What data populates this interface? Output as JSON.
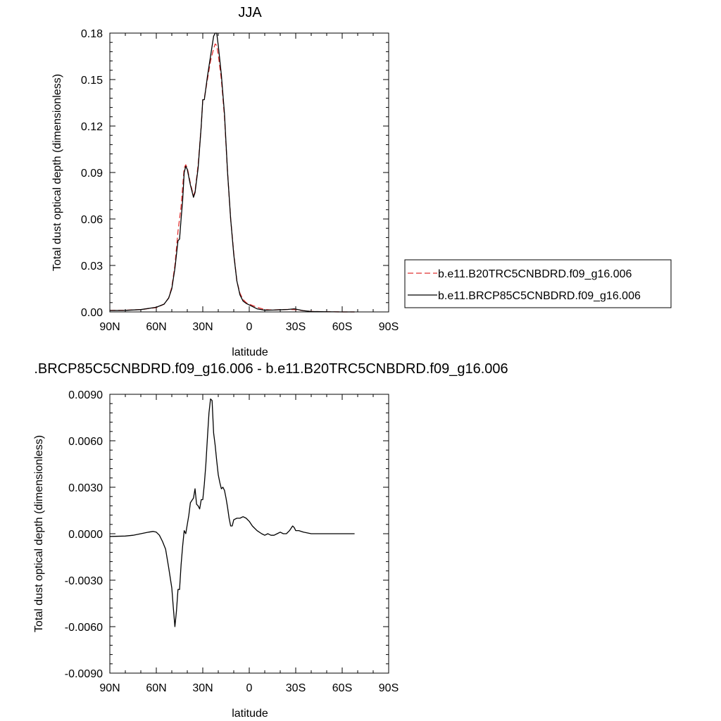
{
  "chart_data": [
    {
      "type": "line",
      "title": "JJA",
      "xlabel": "latitude",
      "ylabel": "Total dust optical depth (dimensionless)",
      "xlim": [
        90,
        -90
      ],
      "ylim": [
        0,
        0.18
      ],
      "xticks": [
        {
          "value": 90,
          "label": "90N"
        },
        {
          "value": 60,
          "label": "60N"
        },
        {
          "value": 30,
          "label": "30N"
        },
        {
          "value": 0,
          "label": "0"
        },
        {
          "value": -30,
          "label": "30S"
        },
        {
          "value": -60,
          "label": "60S"
        },
        {
          "value": -90,
          "label": "90S"
        }
      ],
      "yticks": [
        {
          "value": 0.0,
          "label": "0.00"
        },
        {
          "value": 0.03,
          "label": "0.03"
        },
        {
          "value": 0.06,
          "label": "0.06"
        },
        {
          "value": 0.09,
          "label": "0.09"
        },
        {
          "value": 0.12,
          "label": "0.12"
        },
        {
          "value": 0.15,
          "label": "0.15"
        },
        {
          "value": 0.18,
          "label": "0.18"
        }
      ],
      "legend_position": "right",
      "series": [
        {
          "name": "b.e11.B20TRC5CNBDRD.f09_g16.006",
          "color": "#e03030",
          "dash": "dashed",
          "points": [
            [
              90,
              0.001
            ],
            [
              80,
              0.0011
            ],
            [
              70,
              0.0015
            ],
            [
              60,
              0.0028
            ],
            [
              55,
              0.005
            ],
            [
              52,
              0.009
            ],
            [
              50,
              0.016
            ],
            [
              48,
              0.03
            ],
            [
              46,
              0.052
            ],
            [
              44,
              0.068
            ],
            [
              42,
              0.093
            ],
            [
              41,
              0.095
            ],
            [
              40,
              0.093
            ],
            [
              38,
              0.083
            ],
            [
              36,
              0.075
            ],
            [
              35,
              0.078
            ],
            [
              33,
              0.095
            ],
            [
              31,
              0.12
            ],
            [
              30,
              0.137
            ],
            [
              29,
              0.138
            ],
            [
              27,
              0.15
            ],
            [
              25,
              0.162
            ],
            [
              23,
              0.17
            ],
            [
              22,
              0.173
            ],
            [
              21,
              0.172
            ],
            [
              20,
              0.166
            ],
            [
              18,
              0.15
            ],
            [
              16,
              0.126
            ],
            [
              14,
              0.09
            ],
            [
              12,
              0.06
            ],
            [
              10,
              0.038
            ],
            [
              8,
              0.02
            ],
            [
              6,
              0.012
            ],
            [
              4,
              0.008
            ],
            [
              2,
              0.006
            ],
            [
              0,
              0.005
            ],
            [
              -5,
              0.003
            ],
            [
              -10,
              0.0015
            ],
            [
              -15,
              0.0012
            ],
            [
              -20,
              0.0015
            ],
            [
              -25,
              0.0016
            ],
            [
              -30,
              0.0015
            ],
            [
              -35,
              0.0008
            ],
            [
              -40,
              0.0003
            ],
            [
              -50,
              0.0001
            ],
            [
              -60,
              0.0
            ],
            [
              -68,
              0.0
            ]
          ]
        },
        {
          "name": "b.e11.BRCP85C5CNBDRD.f09_g16.006",
          "color": "#000000",
          "dash": "solid",
          "points": [
            [
              90,
              0.0009
            ],
            [
              80,
              0.001
            ],
            [
              70,
              0.0015
            ],
            [
              60,
              0.003
            ],
            [
              55,
              0.005
            ],
            [
              52,
              0.009
            ],
            [
              50,
              0.015
            ],
            [
              48,
              0.028
            ],
            [
              46,
              0.046
            ],
            [
              45,
              0.047
            ],
            [
              44,
              0.06
            ],
            [
              43,
              0.072
            ],
            [
              42,
              0.09
            ],
            [
              41,
              0.094
            ],
            [
              40,
              0.092
            ],
            [
              38,
              0.082
            ],
            [
              36,
              0.074
            ],
            [
              35,
              0.077
            ],
            [
              33,
              0.093
            ],
            [
              31,
              0.12
            ],
            [
              30,
              0.137
            ],
            [
              29,
              0.137
            ],
            [
              27,
              0.152
            ],
            [
              25,
              0.165
            ],
            [
              23,
              0.178
            ],
            [
              22,
              0.18
            ],
            [
              21,
              0.18
            ],
            [
              20,
              0.172
            ],
            [
              18,
              0.153
            ],
            [
              16,
              0.128
            ],
            [
              14,
              0.09
            ],
            [
              12,
              0.06
            ],
            [
              10,
              0.037
            ],
            [
              8,
              0.02
            ],
            [
              6,
              0.011
            ],
            [
              4,
              0.007
            ],
            [
              2,
              0.0055
            ],
            [
              0,
              0.0045
            ],
            [
              -5,
              0.002
            ],
            [
              -10,
              0.0011
            ],
            [
              -15,
              0.0012
            ],
            [
              -20,
              0.0014
            ],
            [
              -25,
              0.0016
            ],
            [
              -29,
              0.002
            ],
            [
              -31,
              0.0016
            ],
            [
              -35,
              0.0008
            ],
            [
              -40,
              0.0003
            ],
            [
              -50,
              0.0001
            ],
            [
              -60,
              0.0
            ],
            [
              -68,
              0.0
            ]
          ]
        }
      ]
    },
    {
      "type": "line",
      "title": ".BRCP85C5CNBDRD.f09_g16.006 - b.e11.B20TRC5CNBDRD.f09_g16.006",
      "xlabel": "latitude",
      "ylabel": "Total dust optical depth (dimensionless)",
      "xlim": [
        90,
        -90
      ],
      "ylim": [
        -0.009,
        0.009
      ],
      "xticks": [
        {
          "value": 90,
          "label": "90N"
        },
        {
          "value": 60,
          "label": "60N"
        },
        {
          "value": 30,
          "label": "30N"
        },
        {
          "value": 0,
          "label": "0"
        },
        {
          "value": -30,
          "label": "30S"
        },
        {
          "value": -60,
          "label": "60S"
        },
        {
          "value": -90,
          "label": "90S"
        }
      ],
      "yticks": [
        {
          "value": -0.009,
          "label": "-0.0090"
        },
        {
          "value": -0.006,
          "label": "-0.0060"
        },
        {
          "value": -0.003,
          "label": "-0.0030"
        },
        {
          "value": 0.0,
          "label": "0.0000"
        },
        {
          "value": 0.003,
          "label": "0.0030"
        },
        {
          "value": 0.006,
          "label": "0.0060"
        },
        {
          "value": 0.009,
          "label": "0.0090"
        }
      ],
      "series": [
        {
          "color": "#000000",
          "dash": "solid",
          "points": [
            [
              90,
              -0.00018
            ],
            [
              80,
              -0.00015
            ],
            [
              75,
              -0.0001
            ],
            [
              70,
              0.0
            ],
            [
              65,
              0.0001
            ],
            [
              62,
              0.00015
            ],
            [
              60,
              0.0001
            ],
            [
              58,
              -0.0001
            ],
            [
              56,
              -0.0005
            ],
            [
              54,
              -0.001
            ],
            [
              52,
              -0.0022
            ],
            [
              50,
              -0.0035
            ],
            [
              49,
              -0.0048
            ],
            [
              48,
              -0.006
            ],
            [
              47,
              -0.005
            ],
            [
              46,
              -0.0036
            ],
            [
              45,
              -0.0036
            ],
            [
              44,
              -0.002
            ],
            [
              43,
              -0.0008
            ],
            [
              42,
              0.0002
            ],
            [
              41,
              0.0
            ],
            [
              40,
              0.0006
            ],
            [
              39,
              0.0012
            ],
            [
              38,
              0.002
            ],
            [
              36,
              0.0023
            ],
            [
              35,
              0.0029
            ],
            [
              34,
              0.0019
            ],
            [
              33,
              0.0018
            ],
            [
              32,
              0.0016
            ],
            [
              31,
              0.0022
            ],
            [
              30,
              0.0022
            ],
            [
              29,
              0.0032
            ],
            [
              28,
              0.0045
            ],
            [
              27,
              0.0062
            ],
            [
              26,
              0.0078
            ],
            [
              25,
              0.0087
            ],
            [
              24,
              0.0086
            ],
            [
              23,
              0.0065
            ],
            [
              22,
              0.0057
            ],
            [
              21,
              0.0047
            ],
            [
              20,
              0.0038
            ],
            [
              19,
              0.0033
            ],
            [
              18,
              0.0029
            ],
            [
              17,
              0.003
            ],
            [
              16,
              0.0028
            ],
            [
              15,
              0.0023
            ],
            [
              14,
              0.0017
            ],
            [
              13,
              0.001
            ],
            [
              12,
              0.0005
            ],
            [
              11,
              0.0005
            ],
            [
              10,
              0.0009
            ],
            [
              8,
              0.001
            ],
            [
              6,
              0.001
            ],
            [
              4,
              0.0011
            ],
            [
              2,
              0.001
            ],
            [
              0,
              0.0008
            ],
            [
              -2,
              0.0005
            ],
            [
              -5,
              0.0002
            ],
            [
              -8,
              0.0
            ],
            [
              -10,
              -0.0001
            ],
            [
              -12,
              0.0
            ],
            [
              -14,
              -0.0001
            ],
            [
              -16,
              -0.0001
            ],
            [
              -18,
              0.0
            ],
            [
              -20,
              0.0001
            ],
            [
              -22,
              0.0
            ],
            [
              -24,
              0.0
            ],
            [
              -26,
              0.0002
            ],
            [
              -28,
              0.0005
            ],
            [
              -29,
              0.0004
            ],
            [
              -30,
              0.0002
            ],
            [
              -32,
              0.0002
            ],
            [
              -35,
              0.0001
            ],
            [
              -40,
              0.0
            ],
            [
              -50,
              0.0
            ],
            [
              -60,
              0.0
            ],
            [
              -68,
              0.0
            ]
          ]
        }
      ]
    }
  ]
}
